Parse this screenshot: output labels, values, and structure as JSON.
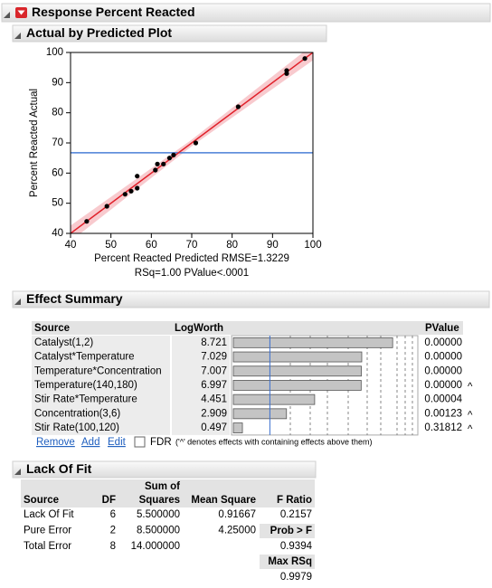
{
  "header": {
    "title": "Response Percent Reacted"
  },
  "actual_by_predicted": {
    "title": "Actual by Predicted Plot"
  },
  "chart_data": {
    "type": "scatter",
    "xlabel": [
      "Percent Reacted Predicted RMSE=1.3229",
      "RSq=1.00 PValue<.0001"
    ],
    "ylabel": "Percent Reacted Actual",
    "x": [
      44,
      49,
      53.5,
      55,
      56.5,
      56.5,
      61,
      61.5,
      63,
      64.5,
      65.5,
      71,
      81.5,
      93.5,
      93.5,
      98
    ],
    "values": [
      44,
      49,
      53,
      54,
      55,
      59,
      61,
      63,
      63,
      65,
      66,
      70,
      82,
      93,
      94,
      98
    ],
    "color": "#000000",
    "mean_line": 66.75,
    "mean_color": "#4a7fd6",
    "fit_line": {
      "x": [
        40,
        100
      ],
      "y": [
        40,
        100
      ],
      "color": "#e0202a"
    },
    "confidence_band": {
      "x": [
        40,
        70,
        100
      ],
      "lower": [
        37.4,
        68.9,
        97.4
      ],
      "upper": [
        42.6,
        71.1,
        102.6
      ],
      "color": "#f5b8bd"
    },
    "xlim": [
      40,
      100
    ],
    "xticks": [
      40,
      50,
      60,
      70,
      80,
      90,
      100
    ],
    "ylim": [
      40,
      100
    ],
    "yticks": [
      40,
      50,
      60,
      70,
      80,
      90,
      100
    ]
  },
  "effect_summary": {
    "title": "Effect Summary",
    "columns": [
      "Source",
      "LogWorth",
      "PValue"
    ],
    "reference": 2,
    "rows": [
      {
        "source": "Catalyst(1,2)",
        "logworth": 8.721,
        "pvalue": "0.00000"
      },
      {
        "source": "Catalyst*Temperature",
        "logworth": 7.029,
        "pvalue": "0.00000"
      },
      {
        "source": "Temperature*Concentration",
        "logworth": 7.007,
        "pvalue": "0.00000"
      },
      {
        "source": "Temperature(140,180)",
        "logworth": 6.997,
        "pvalue": "0.00000",
        "flag": "^"
      },
      {
        "source": "Stir Rate*Temperature",
        "logworth": 4.451,
        "pvalue": "0.00004"
      },
      {
        "source": "Concentration(3,6)",
        "logworth": 2.909,
        "pvalue": "0.00123",
        "flag": "^"
      },
      {
        "source": "Stir Rate(100,120)",
        "logworth": 0.497,
        "pvalue": "0.31812",
        "flag": "^"
      }
    ],
    "buttons": [
      "Remove",
      "Add",
      "Edit"
    ],
    "fdr": "FDR",
    "note": "('^' denotes effects with containing effects above them)"
  },
  "lack_of_fit": {
    "title": "Lack Of Fit",
    "columns": [
      "Source",
      "DF",
      [
        "Sum of",
        "Squares"
      ],
      "Mean Square",
      "F Ratio"
    ],
    "rows": [
      [
        "Lack Of Fit",
        "6",
        "5.500000",
        "0.91667",
        "0.2157"
      ],
      [
        "Pure Error",
        "2",
        "8.500000",
        "4.25000"
      ],
      [
        "Total Error",
        "8",
        "14.000000"
      ]
    ],
    "prob_f": {
      "label": "Prob > F",
      "value": "0.9394"
    },
    "max_rsq": {
      "label": "Max RSq",
      "value": "0.9979"
    }
  }
}
